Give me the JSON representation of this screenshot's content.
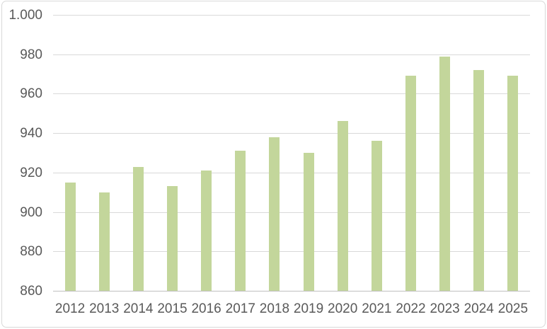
{
  "chart_data": {
    "type": "bar",
    "title": "",
    "xlabel": "",
    "ylabel": "",
    "categories": [
      "2012",
      "2013",
      "2014",
      "2015",
      "2016",
      "2017",
      "2018",
      "2019",
      "2020",
      "2021",
      "2022",
      "2023",
      "2024",
      "2025"
    ],
    "values": [
      915,
      910,
      923,
      913,
      921,
      931,
      938,
      930,
      946,
      936,
      969,
      979,
      972,
      969
    ],
    "ylim": [
      860,
      1000
    ],
    "ytick_step": 20,
    "ytick_labels": [
      "860",
      "880",
      "900",
      "920",
      "940",
      "960",
      "980",
      "1.000"
    ],
    "grid": true,
    "legend": "none",
    "bar_color": "#c3d69b"
  },
  "style": {
    "bar_fill": "#c3d69b",
    "gridline_color": "#d9d9d9",
    "axis_line_color": "#bfbfbf",
    "tick_text_color": "#595959",
    "frame_border_color": "#d9d9d9",
    "background": "#ffffff"
  }
}
